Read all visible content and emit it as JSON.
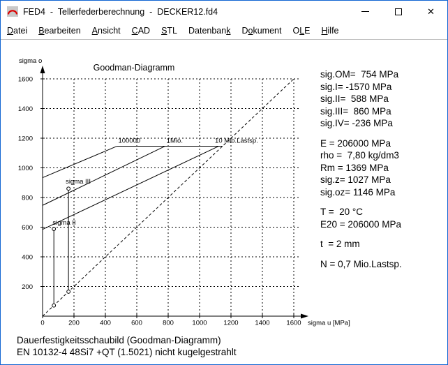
{
  "window": {
    "title": "FED4  -  Tellerfederberechnung  -  DECKER12.fd4",
    "icon": "disc-spring-arc-icon",
    "icon_colors": {
      "background": "#c9c9c9",
      "arc": "#dd0000"
    },
    "border_color": "#1065d2",
    "controls": [
      "minimize",
      "maximize",
      "close"
    ],
    "close_glyph": "✕"
  },
  "menu": {
    "items": [
      {
        "label": "Datei",
        "underline_index": 0
      },
      {
        "label": "Bearbeiten",
        "underline_index": 0
      },
      {
        "label": "Ansicht",
        "underline_index": 0
      },
      {
        "label": "CAD",
        "underline_index": 0
      },
      {
        "label": "STL",
        "underline_index": 0
      },
      {
        "label": "Datenbank",
        "underline_index": 8
      },
      {
        "label": "Dokument",
        "underline_index": 1
      },
      {
        "label": "OLE",
        "underline_index": 1
      },
      {
        "label": "Hilfe",
        "underline_index": 0
      }
    ]
  },
  "chart_data": {
    "type": "line",
    "title": "Goodman-Diagramm",
    "xlabel": "sigma u [MPa]",
    "ylabel": "sigma o",
    "xlim": [
      0,
      1650
    ],
    "ylim": [
      0,
      1650
    ],
    "xticks": [
      0,
      200,
      400,
      600,
      800,
      1000,
      1200,
      1400,
      1600
    ],
    "yticks": [
      0,
      200,
      400,
      600,
      800,
      1000,
      1200,
      1400,
      1600
    ],
    "grid": true,
    "line_color": "#000000",
    "series": [
      {
        "name": "goodman-line-100000",
        "label": "100000",
        "label_at": [
          482,
          1170
        ],
        "style": "solid",
        "points": [
          [
            0,
            934
          ],
          [
            474,
            1146
          ]
        ]
      },
      {
        "name": "goodman-line-1mio",
        "label": "1Mio.",
        "label_at": [
          790,
          1170
        ],
        "style": "solid",
        "points": [
          [
            0,
            747
          ],
          [
            780,
            1146
          ]
        ]
      },
      {
        "name": "goodman-line-10mio",
        "label": "10 Mio.Lastsp.",
        "label_at": [
          1098,
          1170
        ],
        "style": "solid",
        "points": [
          [
            0,
            585
          ],
          [
            1122,
            1146
          ]
        ]
      },
      {
        "name": "sig-oz-ceiling",
        "label": "",
        "style": "solid",
        "points": [
          [
            474,
            1146
          ],
          [
            1146,
            1146
          ]
        ]
      },
      {
        "name": "diagonal-sigma-o-equals-u",
        "label": "",
        "style": "dashed",
        "points": [
          [
            0,
            0
          ],
          [
            1600,
            1600
          ]
        ]
      },
      {
        "name": "stroke-line-II",
        "label": "sigma II",
        "label_at": [
          64,
          617
        ],
        "style": "solid",
        "markers": true,
        "points": [
          [
            72,
            72
          ],
          [
            72,
            588
          ]
        ]
      },
      {
        "name": "stroke-line-III",
        "label": "sigma III",
        "label_at": [
          147,
          894
        ],
        "style": "solid",
        "markers": true,
        "points": [
          [
            165,
            165
          ],
          [
            165,
            860
          ]
        ]
      }
    ]
  },
  "results_panel": {
    "blocks": [
      {
        "lines": [
          "sig.OM=  754 MPa",
          "sig.I= -1570 MPa",
          "sig.II=  588 MPa",
          "sig.III=  860 MPa",
          "sig.IV= -236 MPa"
        ]
      },
      {
        "lines": [
          "E = 206000 MPa",
          "rho =  7,80 kg/dm3",
          "Rm = 1369 MPa",
          "sig.z= 1027 MPa",
          "sig.oz= 1146 MPa"
        ]
      },
      {
        "lines": [
          "T =  20 °C",
          "E20 = 206000 MPa"
        ]
      },
      {
        "lines": [
          "t  = 2 mm"
        ]
      },
      {
        "lines": [
          "N = 0,7 Mio.Lastsp."
        ]
      }
    ]
  },
  "footer": {
    "line1": "Dauerfestigkeitsschaubild (Goodman-Diagramm)",
    "line2": "EN 10132-4 48Si7 +QT (1.5021) nicht kugelgestrahlt"
  }
}
